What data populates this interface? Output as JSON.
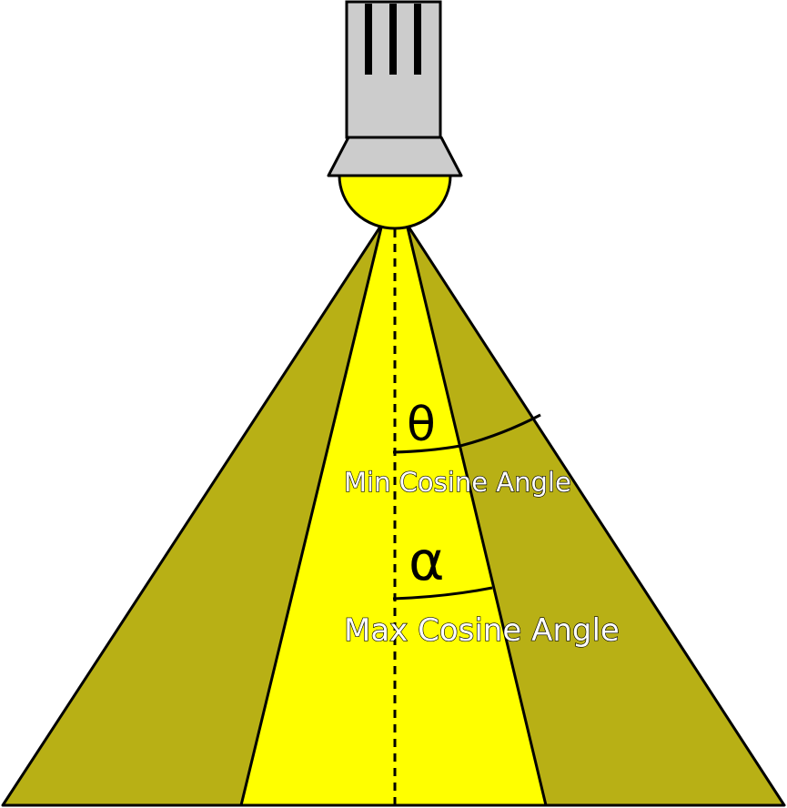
{
  "labels": {
    "theta": "θ",
    "alpha": "α",
    "min_cosine": "Min Cosine Angle",
    "max_cosine": "Max Cosine Angle"
  },
  "colors": {
    "outer_cone": "#b8b015",
    "inner_cone": "#ffff00",
    "bulb": "#ffff00",
    "housing": "#cccccc",
    "outline": "#000000"
  },
  "icons": {
    "lamp": "spotlight-lamp-icon"
  }
}
